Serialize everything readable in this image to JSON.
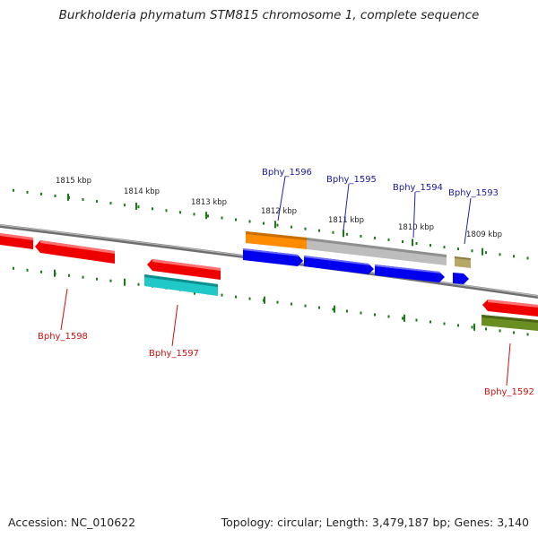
{
  "title": "Burkholderia phymatum STM815 chromosome 1, complete sequence",
  "footer": {
    "accession": "Accession: NC_010622",
    "topology": "Topology: circular; Length: 3,479,187 bp; Genes: 3,140"
  },
  "kbp_ticks": [
    {
      "label": "1815 kbp"
    },
    {
      "label": "1814 kbp"
    },
    {
      "label": "1813 kbp"
    },
    {
      "label": "1812 kbp"
    },
    {
      "label": "1811 kbp"
    },
    {
      "label": "1810 kbp"
    },
    {
      "label": "1809 kbp"
    }
  ],
  "genes_forward": [
    {
      "name": "Bphy_1596"
    },
    {
      "name": "Bphy_1595"
    },
    {
      "name": "Bphy_1594"
    },
    {
      "name": "Bphy_1593"
    }
  ],
  "genes_reverse": [
    {
      "name": "Bphy_1598"
    },
    {
      "name": "Bphy_1597"
    },
    {
      "name": "Bphy_1592"
    }
  ],
  "colors": {
    "backbone": "#777777",
    "tick": "#1a7a1a",
    "cds_forward": "#0000ee",
    "cds_reverse": "#ee0000",
    "orange": "#ff8c00",
    "gray": "#bbbbbb",
    "tan": "#b5a564",
    "cyan": "#20c8c8",
    "olive": "#6b8e23"
  }
}
